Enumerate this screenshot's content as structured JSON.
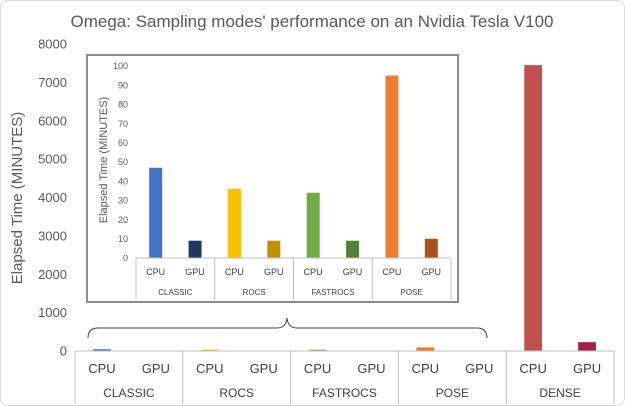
{
  "chart_data": [
    {
      "type": "bar",
      "title": "Omega: Sampling modes' performance on an Nvidia Tesla V100",
      "ylabel": "Elapsed Time (MINUTES)",
      "ylim": [
        0,
        8000
      ],
      "yticks": [
        0,
        1000,
        2000,
        3000,
        4000,
        5000,
        6000,
        7000,
        8000
      ],
      "groups": [
        "CLASSIC",
        "ROCS",
        "FASTROCS",
        "POSE",
        "DENSE"
      ],
      "categories": [
        "CPU",
        "GPU",
        "CPU",
        "GPU",
        "CPU",
        "GPU",
        "CPU",
        "GPU",
        "CPU",
        "GPU"
      ],
      "values": [
        47,
        9,
        36,
        9,
        34,
        9,
        95,
        10,
        7450,
        230
      ],
      "colors": [
        "#4472c4",
        "#1f3864",
        "#ffc000",
        "#bf9000",
        "#70ad47",
        "#548235",
        "#ed7d31",
        "#a9541c",
        "#c0504d",
        "#a0214b"
      ],
      "grid": false
    },
    {
      "type": "bar",
      "title": "",
      "ylabel": "Elapsed Time (MINUTES)",
      "ylim": [
        0,
        100
      ],
      "yticks": [
        0,
        10,
        20,
        30,
        40,
        50,
        60,
        70,
        80,
        90,
        100
      ],
      "groups": [
        "CLASSIC",
        "ROCS",
        "FASTROCS",
        "POSE"
      ],
      "categories": [
        "CPU",
        "GPU",
        "CPU",
        "GPU",
        "CPU",
        "GPU",
        "CPU",
        "GPU"
      ],
      "values": [
        47,
        9,
        36,
        9,
        34,
        9,
        95,
        10
      ],
      "colors": [
        "#4472c4",
        "#1f3864",
        "#ffc000",
        "#bf9000",
        "#70ad47",
        "#548235",
        "#ed7d31",
        "#a9541c"
      ],
      "grid": false
    }
  ]
}
